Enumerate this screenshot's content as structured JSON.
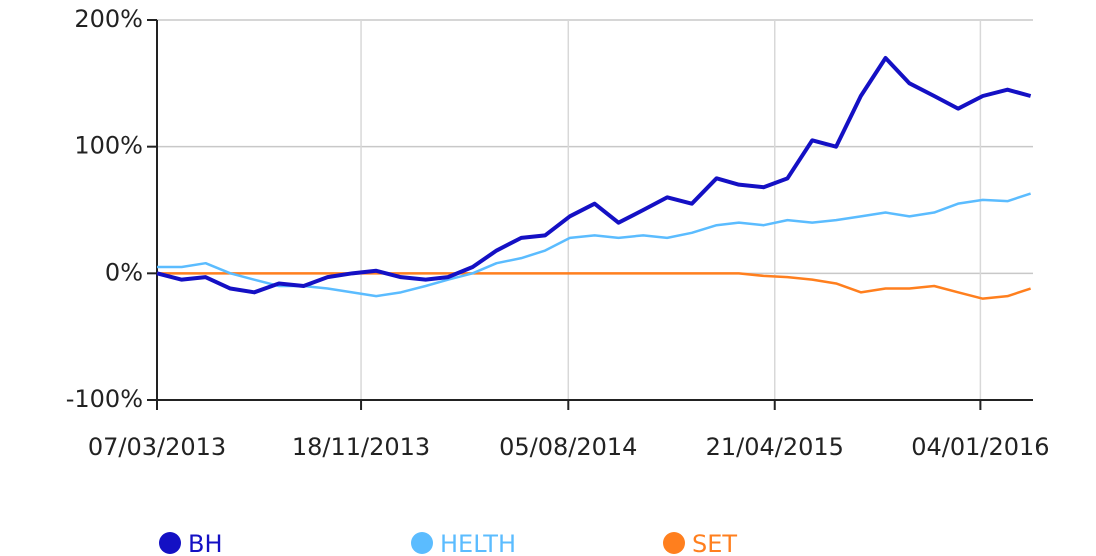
{
  "chart_data": {
    "type": "line",
    "x": [
      "2013-03-07",
      "2013-04-07",
      "2013-05-07",
      "2013-06-07",
      "2013-07-07",
      "2013-08-07",
      "2013-09-07",
      "2013-10-07",
      "2013-11-07",
      "2013-12-07",
      "2014-01-07",
      "2014-02-07",
      "2014-03-07",
      "2014-04-07",
      "2014-05-07",
      "2014-06-07",
      "2014-07-07",
      "2014-08-07",
      "2014-09-07",
      "2014-10-07",
      "2014-11-07",
      "2014-12-07",
      "2015-01-07",
      "2015-02-07",
      "2015-03-07",
      "2015-04-07",
      "2015-05-07",
      "2015-06-07",
      "2015-07-07",
      "2015-08-07",
      "2015-09-07",
      "2015-10-07",
      "2015-11-07",
      "2015-12-07",
      "2016-01-07",
      "2016-02-07",
      "2016-03-07"
    ],
    "series": [
      {
        "name": "BH",
        "color": "#1410c4",
        "values": [
          0,
          -5,
          -3,
          -12,
          -15,
          -8,
          -10,
          -3,
          0,
          2,
          -3,
          -5,
          -3,
          5,
          18,
          28,
          30,
          45,
          55,
          40,
          50,
          60,
          55,
          75,
          70,
          68,
          75,
          105,
          100,
          140,
          170,
          150,
          140,
          130,
          140,
          145,
          140
        ]
      },
      {
        "name": "HELTH",
        "color": "#5bbcff",
        "values": [
          5,
          5,
          8,
          0,
          -5,
          -10,
          -10,
          -12,
          -15,
          -18,
          -15,
          -10,
          -5,
          0,
          8,
          12,
          18,
          28,
          30,
          28,
          30,
          28,
          32,
          38,
          40,
          38,
          42,
          40,
          42,
          45,
          48,
          45,
          48,
          55,
          58,
          57,
          63
        ]
      },
      {
        "name": "SET",
        "color": "#ff7f1e",
        "values": [
          0,
          0,
          0,
          0,
          0,
          0,
          0,
          0,
          0,
          0,
          0,
          0,
          0,
          0,
          0,
          0,
          0,
          0,
          0,
          0,
          0,
          0,
          0,
          0,
          0,
          -2,
          -3,
          -5,
          -8,
          -15,
          -12,
          -12,
          -10,
          -15,
          -20,
          -18,
          -12
        ]
      }
    ],
    "xlim": [
      "2013-03-07",
      "2016-03-10"
    ],
    "xticks": [
      {
        "value": "2013-03-07",
        "label": "07/03/2013"
      },
      {
        "value": "2013-11-18",
        "label": "18/11/2013"
      },
      {
        "value": "2014-08-05",
        "label": "05/08/2014"
      },
      {
        "value": "2015-04-21",
        "label": "21/04/2015"
      },
      {
        "value": "2016-01-04",
        "label": "04/01/2016"
      }
    ],
    "ylim": [
      -100,
      200
    ],
    "yticks": [
      {
        "value": -100,
        "label": "-100%"
      },
      {
        "value": 0,
        "label": "0%"
      },
      {
        "value": 100,
        "label": "100%"
      },
      {
        "value": 200,
        "label": "200%"
      }
    ],
    "grid": true,
    "legend": "bottom"
  }
}
